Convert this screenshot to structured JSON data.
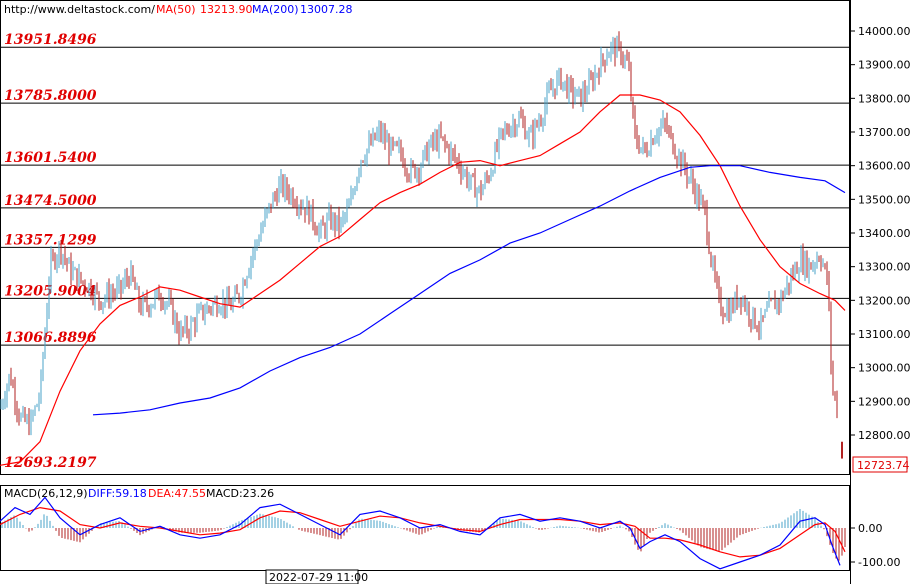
{
  "header": {
    "url": "http://www.deltastock.com/",
    "ma50_label": "MA(50)",
    "ma50_value": "13213.90",
    "ma200_label": "MA(200)",
    "ma200_value": "13007.28"
  },
  "macd_header": {
    "title": "MACD(26,12,9)",
    "diff": "DIFF:59.18",
    "dea": "DEA:47.55",
    "macd": "MACD:23.26"
  },
  "date_label": "2022-07-29 11:00",
  "last_price_label": "12723.74",
  "colors": {
    "level_text": "#e00000",
    "ma50": "#ff0000",
    "ma200": "#0000ff",
    "candle_up": "#49a3c8",
    "candle_down": "#b22222",
    "diff": "#0000ff",
    "dea": "#ff0000",
    "hist_pos": "#49a3c8",
    "hist_neg": "#b22222"
  },
  "chart_data": {
    "type": "candlestick",
    "price_axis": {
      "min": 12700,
      "max": 14100,
      "ticks": [
        14000,
        13900,
        13800,
        13700,
        13600,
        13500,
        13400,
        13300,
        13200,
        13100,
        13000,
        12900,
        12800
      ],
      "tick_labels": [
        "14000.00",
        "13900.00",
        "13800.00",
        "13700.00",
        "13600.00",
        "13500.00",
        "13400.00",
        "13300.00",
        "13200.00",
        "13100.00",
        "13000.00",
        "12900.00",
        "12800.00"
      ]
    },
    "levels": [
      {
        "label": "13951.8496",
        "value": 13951.85
      },
      {
        "label": "13785.8000",
        "value": 13785.8
      },
      {
        "label": "13601.5400",
        "value": 13601.54
      },
      {
        "label": "13474.5000",
        "value": 13474.5
      },
      {
        "label": "13357.1299",
        "value": 13357.13
      },
      {
        "label": "13205.9004",
        "value": 13205.9
      },
      {
        "label": "13066.8896",
        "value": 13066.89
      },
      {
        "label": "12693.2197",
        "value": 12693.22
      }
    ],
    "close_anchors": [
      [
        0,
        12880
      ],
      [
        10,
        12980
      ],
      [
        20,
        12850
      ],
      [
        30,
        12830
      ],
      [
        40,
        12920
      ],
      [
        50,
        13300
      ],
      [
        60,
        13360
      ],
      [
        70,
        13290
      ],
      [
        80,
        13260
      ],
      [
        90,
        13240
      ],
      [
        100,
        13200
      ],
      [
        110,
        13220
      ],
      [
        120,
        13230
      ],
      [
        130,
        13280
      ],
      [
        140,
        13180
      ],
      [
        150,
        13190
      ],
      [
        160,
        13220
      ],
      [
        170,
        13180
      ],
      [
        180,
        13100
      ],
      [
        190,
        13120
      ],
      [
        200,
        13160
      ],
      [
        210,
        13180
      ],
      [
        220,
        13200
      ],
      [
        230,
        13180
      ],
      [
        240,
        13220
      ],
      [
        250,
        13320
      ],
      [
        260,
        13400
      ],
      [
        270,
        13480
      ],
      [
        280,
        13540
      ],
      [
        290,
        13520
      ],
      [
        300,
        13490
      ],
      [
        310,
        13460
      ],
      [
        320,
        13400
      ],
      [
        330,
        13440
      ],
      [
        340,
        13420
      ],
      [
        350,
        13480
      ],
      [
        360,
        13620
      ],
      [
        370,
        13660
      ],
      [
        380,
        13700
      ],
      [
        390,
        13650
      ],
      [
        400,
        13640
      ],
      [
        410,
        13580
      ],
      [
        420,
        13600
      ],
      [
        430,
        13660
      ],
      [
        440,
        13680
      ],
      [
        450,
        13640
      ],
      [
        460,
        13600
      ],
      [
        470,
        13550
      ],
      [
        480,
        13520
      ],
      [
        490,
        13580
      ],
      [
        500,
        13680
      ],
      [
        510,
        13720
      ],
      [
        520,
        13740
      ],
      [
        530,
        13680
      ],
      [
        540,
        13740
      ],
      [
        550,
        13820
      ],
      [
        560,
        13860
      ],
      [
        570,
        13820
      ],
      [
        580,
        13800
      ],
      [
        590,
        13840
      ],
      [
        600,
        13900
      ],
      [
        610,
        13950
      ],
      [
        620,
        13940
      ],
      [
        628,
        13900
      ],
      [
        635,
        13680
      ],
      [
        645,
        13640
      ],
      [
        655,
        13700
      ],
      [
        665,
        13720
      ],
      [
        675,
        13650
      ],
      [
        690,
        13560
      ],
      [
        705,
        13460
      ],
      [
        712,
        13300
      ],
      [
        720,
        13180
      ],
      [
        730,
        13170
      ],
      [
        740,
        13220
      ],
      [
        750,
        13160
      ],
      [
        760,
        13120
      ],
      [
        770,
        13180
      ],
      [
        780,
        13200
      ],
      [
        790,
        13260
      ],
      [
        800,
        13320
      ],
      [
        810,
        13300
      ],
      [
        820,
        13340
      ],
      [
        828,
        13250
      ],
      [
        832,
        12940
      ],
      [
        838,
        12870
      ]
    ],
    "ma50": [
      [
        0,
        12710
      ],
      [
        20,
        12720
      ],
      [
        40,
        12780
      ],
      [
        60,
        12930
      ],
      [
        80,
        13050
      ],
      [
        100,
        13130
      ],
      [
        120,
        13185
      ],
      [
        140,
        13210
      ],
      [
        160,
        13240
      ],
      [
        180,
        13230
      ],
      [
        200,
        13210
      ],
      [
        220,
        13190
      ],
      [
        240,
        13180
      ],
      [
        260,
        13220
      ],
      [
        280,
        13260
      ],
      [
        300,
        13310
      ],
      [
        320,
        13360
      ],
      [
        340,
        13390
      ],
      [
        360,
        13440
      ],
      [
        380,
        13490
      ],
      [
        400,
        13520
      ],
      [
        420,
        13545
      ],
      [
        440,
        13580
      ],
      [
        460,
        13610
      ],
      [
        480,
        13615
      ],
      [
        500,
        13600
      ],
      [
        520,
        13615
      ],
      [
        540,
        13630
      ],
      [
        560,
        13665
      ],
      [
        580,
        13700
      ],
      [
        600,
        13760
      ],
      [
        620,
        13810
      ],
      [
        640,
        13810
      ],
      [
        660,
        13795
      ],
      [
        680,
        13760
      ],
      [
        700,
        13690
      ],
      [
        720,
        13600
      ],
      [
        740,
        13480
      ],
      [
        760,
        13380
      ],
      [
        780,
        13300
      ],
      [
        800,
        13250
      ],
      [
        820,
        13220
      ],
      [
        835,
        13200
      ],
      [
        845,
        13170
      ]
    ],
    "ma200": [
      [
        93,
        12860
      ],
      [
        120,
        12865
      ],
      [
        150,
        12875
      ],
      [
        180,
        12895
      ],
      [
        210,
        12910
      ],
      [
        240,
        12940
      ],
      [
        270,
        12990
      ],
      [
        300,
        13030
      ],
      [
        330,
        13060
      ],
      [
        360,
        13100
      ],
      [
        390,
        13160
      ],
      [
        420,
        13220
      ],
      [
        450,
        13280
      ],
      [
        480,
        13320
      ],
      [
        510,
        13370
      ],
      [
        540,
        13400
      ],
      [
        570,
        13440
      ],
      [
        600,
        13480
      ],
      [
        630,
        13525
      ],
      [
        660,
        13565
      ],
      [
        690,
        13595
      ],
      [
        710,
        13600
      ],
      [
        740,
        13600
      ],
      [
        770,
        13580
      ],
      [
        800,
        13565
      ],
      [
        825,
        13555
      ],
      [
        845,
        13520
      ]
    ],
    "last_price": 12723.74,
    "macd_axis": {
      "min": -120,
      "max": 100,
      "ticks": [
        0,
        -100
      ],
      "tick_labels": [
        "0.00",
        "-100.00"
      ]
    },
    "diff": [
      [
        0,
        20
      ],
      [
        15,
        60
      ],
      [
        30,
        40
      ],
      [
        45,
        90
      ],
      [
        60,
        30
      ],
      [
        80,
        -20
      ],
      [
        100,
        10
      ],
      [
        120,
        30
      ],
      [
        140,
        -10
      ],
      [
        160,
        5
      ],
      [
        180,
        -20
      ],
      [
        200,
        -30
      ],
      [
        220,
        -20
      ],
      [
        240,
        10
      ],
      [
        260,
        60
      ],
      [
        280,
        70
      ],
      [
        300,
        40
      ],
      [
        320,
        10
      ],
      [
        340,
        -20
      ],
      [
        360,
        40
      ],
      [
        380,
        50
      ],
      [
        400,
        30
      ],
      [
        420,
        0
      ],
      [
        440,
        10
      ],
      [
        460,
        -10
      ],
      [
        480,
        -20
      ],
      [
        500,
        30
      ],
      [
        520,
        40
      ],
      [
        540,
        20
      ],
      [
        560,
        30
      ],
      [
        580,
        20
      ],
      [
        600,
        0
      ],
      [
        620,
        20
      ],
      [
        630,
        0
      ],
      [
        640,
        -60
      ],
      [
        650,
        -40
      ],
      [
        665,
        -20
      ],
      [
        680,
        -40
      ],
      [
        700,
        -90
      ],
      [
        720,
        -120
      ],
      [
        740,
        -100
      ],
      [
        760,
        -80
      ],
      [
        780,
        -50
      ],
      [
        800,
        20
      ],
      [
        815,
        30
      ],
      [
        825,
        10
      ],
      [
        832,
        -50
      ],
      [
        840,
        -110
      ]
    ],
    "dea": [
      [
        0,
        10
      ],
      [
        20,
        40
      ],
      [
        40,
        60
      ],
      [
        60,
        50
      ],
      [
        80,
        10
      ],
      [
        100,
        0
      ],
      [
        120,
        15
      ],
      [
        140,
        5
      ],
      [
        160,
        0
      ],
      [
        180,
        -10
      ],
      [
        200,
        -20
      ],
      [
        220,
        -15
      ],
      [
        240,
        -5
      ],
      [
        260,
        30
      ],
      [
        280,
        50
      ],
      [
        300,
        45
      ],
      [
        320,
        25
      ],
      [
        340,
        5
      ],
      [
        360,
        20
      ],
      [
        380,
        35
      ],
      [
        400,
        30
      ],
      [
        420,
        15
      ],
      [
        440,
        5
      ],
      [
        460,
        -5
      ],
      [
        480,
        -10
      ],
      [
        500,
        10
      ],
      [
        520,
        25
      ],
      [
        540,
        25
      ],
      [
        560,
        25
      ],
      [
        580,
        20
      ],
      [
        600,
        10
      ],
      [
        620,
        15
      ],
      [
        635,
        5
      ],
      [
        650,
        -30
      ],
      [
        665,
        -30
      ],
      [
        680,
        -35
      ],
      [
        700,
        -50
      ],
      [
        720,
        -70
      ],
      [
        740,
        -85
      ],
      [
        760,
        -80
      ],
      [
        780,
        -60
      ],
      [
        800,
        -20
      ],
      [
        815,
        10
      ],
      [
        825,
        15
      ],
      [
        835,
        -10
      ],
      [
        845,
        -70
      ]
    ]
  }
}
